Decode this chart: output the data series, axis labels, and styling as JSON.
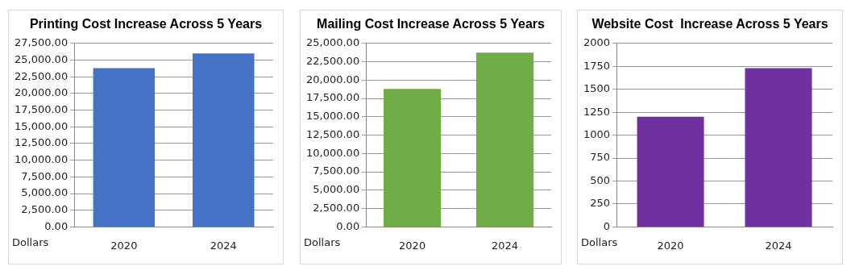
{
  "chart_data": [
    {
      "type": "bar",
      "title": "Printing Cost Increase Across 5 Years",
      "ylabel": "Dollars",
      "categories": [
        "2020",
        "2024"
      ],
      "values": [
        23800,
        26000
      ],
      "color": "#4472c4",
      "ylim": [
        0,
        27500
      ],
      "yticks": [
        {
          "value": 0,
          "label": "0.00"
        },
        {
          "value": 2500,
          "label": "2,500.00"
        },
        {
          "value": 5000,
          "label": "5,000.00"
        },
        {
          "value": 7500,
          "label": "7,500.00"
        },
        {
          "value": 10000,
          "label": "10,000.00"
        },
        {
          "value": 12500,
          "label": "12,500.00"
        },
        {
          "value": 15000,
          "label": "15,000.00"
        },
        {
          "value": 17500,
          "label": "17,500.00"
        },
        {
          "value": 20000,
          "label": "20,000.00"
        },
        {
          "value": 22500,
          "label": "22,500.00"
        },
        {
          "value": 25000,
          "label": "25,000.00"
        },
        {
          "value": 27500,
          "label": "27,500.00"
        }
      ],
      "grid": "y"
    },
    {
      "type": "bar",
      "title": "Mailing Cost Increase Across 5 Years",
      "ylabel": "Dollars",
      "categories": [
        "2020",
        "2024"
      ],
      "values": [
        18800,
        23750
      ],
      "color": "#70ad47",
      "ylim": [
        0,
        25000
      ],
      "yticks": [
        {
          "value": 0,
          "label": "0.00"
        },
        {
          "value": 2500,
          "label": "2,500.00"
        },
        {
          "value": 5000,
          "label": "5,000.00"
        },
        {
          "value": 7500,
          "label": "7,500.00"
        },
        {
          "value": 10000,
          "label": "10,000.00"
        },
        {
          "value": 12500,
          "label": "12,500.00"
        },
        {
          "value": 15000,
          "label": "15,000.00"
        },
        {
          "value": 17500,
          "label": "17,500.00"
        },
        {
          "value": 20000,
          "label": "20,000.00"
        },
        {
          "value": 22500,
          "label": "22,500.00"
        },
        {
          "value": 25000,
          "label": "25,000.00"
        }
      ],
      "grid": "y"
    },
    {
      "type": "bar",
      "title": "Website Cost  Increase Across 5 Years",
      "ylabel": "Dollars",
      "categories": [
        "2020",
        "2024"
      ],
      "values": [
        1200,
        1730
      ],
      "color": "#7030a0",
      "ylim": [
        0,
        2000
      ],
      "yticks": [
        0,
        250,
        500,
        750,
        1000,
        1250,
        1500,
        1750,
        2000
      ],
      "grid": "y"
    }
  ]
}
